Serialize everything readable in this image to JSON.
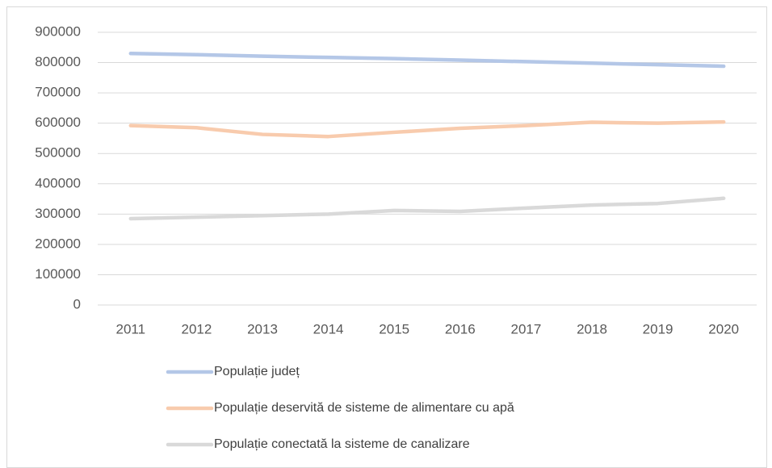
{
  "chart_data": {
    "type": "line",
    "categories": [
      "2011",
      "2012",
      "2013",
      "2014",
      "2015",
      "2016",
      "2017",
      "2018",
      "2019",
      "2020"
    ],
    "series": [
      {
        "name": "Populație județ",
        "color": "#b4c7e7",
        "values": [
          830000,
          826000,
          821000,
          817000,
          813000,
          808000,
          803000,
          798000,
          793000,
          788000
        ]
      },
      {
        "name": "Populație deservită de sisteme de alimentare cu apă",
        "color": "#f8cbad",
        "values": [
          592000,
          585000,
          563000,
          556000,
          570000,
          583000,
          592000,
          603000,
          600000,
          604000
        ]
      },
      {
        "name": "Populație conectată la sisteme de canalizare",
        "color": "#d9d9d9",
        "values": [
          285000,
          290000,
          295000,
          300000,
          312000,
          309000,
          320000,
          330000,
          335000,
          352000
        ]
      }
    ],
    "ylim": [
      0,
      900000
    ],
    "yticks": [
      0,
      100000,
      200000,
      300000,
      400000,
      500000,
      600000,
      700000,
      800000,
      900000
    ],
    "grid": true,
    "legend": "bottom"
  }
}
